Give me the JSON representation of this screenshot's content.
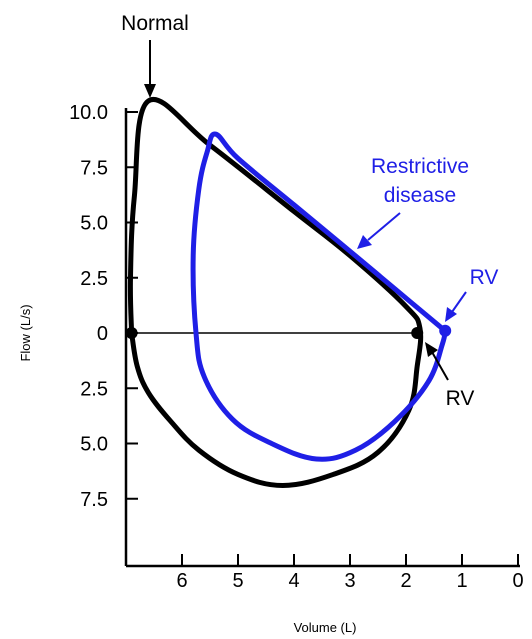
{
  "chart_data": {
    "type": "line",
    "xlabel": "Volume (L)",
    "ylabel": "Flow (L/s)",
    "x_reversed": true,
    "xlim": [
      7,
      0
    ],
    "ylim": [
      -10.0,
      12.0
    ],
    "x_ticks": [
      {
        "value": 6,
        "label": "6"
      },
      {
        "value": 5,
        "label": "5"
      },
      {
        "value": 4,
        "label": "4"
      },
      {
        "value": 3,
        "label": "3"
      },
      {
        "value": 2,
        "label": "2"
      },
      {
        "value": 1,
        "label": "1"
      },
      {
        "value": 0,
        "label": "0"
      }
    ],
    "y_ticks": [
      {
        "value": 10.0,
        "label": "10.0"
      },
      {
        "value": 7.5,
        "label": "7.5"
      },
      {
        "value": 5.0,
        "label": "5.0"
      },
      {
        "value": 2.5,
        "label": "2.5"
      },
      {
        "value": 0,
        "label": "0"
      },
      {
        "value": -2.5,
        "label": "2.5"
      },
      {
        "value": -5.0,
        "label": "5.0"
      },
      {
        "value": -7.5,
        "label": "7.5"
      }
    ],
    "series": [
      {
        "name": "Normal",
        "color": "#000000",
        "points": [
          [
            6.9,
            0
          ],
          [
            6.92,
            2.5
          ],
          [
            6.85,
            6.2
          ],
          [
            6.6,
            10.5
          ],
          [
            5.5,
            8.5
          ],
          [
            4.0,
            5.5
          ],
          [
            3.0,
            3.5
          ],
          [
            2.0,
            1.2
          ],
          [
            1.75,
            0.2
          ],
          [
            1.8,
            -1.5
          ],
          [
            1.95,
            -3.5
          ],
          [
            2.5,
            -5.4
          ],
          [
            3.3,
            -6.4
          ],
          [
            4.2,
            -6.9
          ],
          [
            5.0,
            -6.4
          ],
          [
            5.7,
            -5.3
          ],
          [
            6.2,
            -4.0
          ],
          [
            6.6,
            -2.7
          ],
          [
            6.8,
            -1.5
          ],
          [
            6.9,
            0
          ]
        ],
        "markers": [
          [
            6.9,
            0
          ],
          [
            1.8,
            0
          ]
        ]
      },
      {
        "name": "Restrictive disease",
        "color": "#1f1fe6",
        "points": [
          [
            1.35,
            0.2
          ],
          [
            2.2,
            2.0
          ],
          [
            3.0,
            3.7
          ],
          [
            4.0,
            5.8
          ],
          [
            5.0,
            7.9
          ],
          [
            5.4,
            9.0
          ],
          [
            5.55,
            8.2
          ],
          [
            5.7,
            6.5
          ],
          [
            5.8,
            3.5
          ],
          [
            5.75,
            0
          ],
          [
            5.6,
            -2.0
          ],
          [
            5.1,
            -3.9
          ],
          [
            4.4,
            -5.0
          ],
          [
            3.6,
            -5.7
          ],
          [
            2.9,
            -5.3
          ],
          [
            2.2,
            -4.0
          ],
          [
            1.6,
            -2.2
          ],
          [
            1.35,
            -0.5
          ],
          [
            1.3,
            0.1
          ]
        ],
        "markers": [
          [
            1.3,
            0.1
          ]
        ]
      }
    ],
    "annotations": [
      {
        "text": "Normal",
        "color": "#000000",
        "points_to": [
          6.6,
          10.5
        ]
      },
      {
        "text": "Restrictive",
        "color": "#1f1fe6"
      },
      {
        "text": "disease",
        "color": "#1f1fe6"
      },
      {
        "text": "RV",
        "color": "#1f1fe6",
        "points_to": [
          1.3,
          0.1
        ]
      },
      {
        "text": "RV",
        "color": "#000000",
        "points_to": [
          1.8,
          0
        ]
      }
    ],
    "grid": false,
    "legend": "none"
  }
}
